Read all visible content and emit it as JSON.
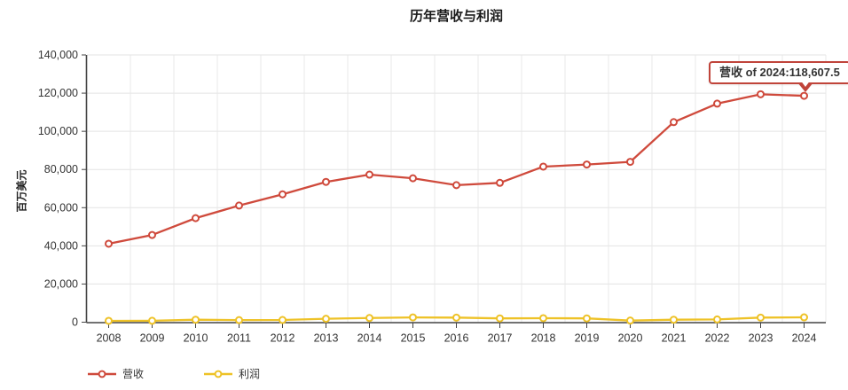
{
  "chart_data": {
    "type": "line",
    "title": "历年营收与利润",
    "xlabel": "",
    "ylabel": "百万美元",
    "categories": [
      "2008",
      "2009",
      "2010",
      "2011",
      "2012",
      "2013",
      "2014",
      "2015",
      "2016",
      "2017",
      "2018",
      "2019",
      "2020",
      "2021",
      "2022",
      "2023",
      "2024"
    ],
    "series": [
      {
        "name": "营收",
        "color": "#cf4a3c",
        "values": [
          41100,
          45700,
          54500,
          61100,
          67000,
          73500,
          77300,
          75400,
          71800,
          73000,
          81500,
          82600,
          84000,
          104800,
          114500,
          119400,
          118607.5
        ]
      },
      {
        "name": "利润",
        "color": "#eec227",
        "values": [
          700,
          750,
          1300,
          1100,
          1150,
          1800,
          2200,
          2500,
          2400,
          2000,
          2100,
          2000,
          850,
          1300,
          1450,
          2400,
          2550
        ]
      }
    ],
    "ylim": [
      0,
      140000
    ],
    "y_ticks": [
      0,
      20000,
      40000,
      60000,
      80000,
      100000,
      120000,
      140000
    ],
    "grid": true,
    "legend_position": "bottom-left",
    "tooltip": {
      "text": "营收 of 2024:118,607.5",
      "series": "营收",
      "category": "2024",
      "value": 118607.5,
      "border_color": "#c0443a"
    },
    "colors": {
      "axis": "#444444",
      "grid_h": "#e3e3e3",
      "grid_v": "#e8e8e8",
      "tick_label": "#333333"
    }
  }
}
